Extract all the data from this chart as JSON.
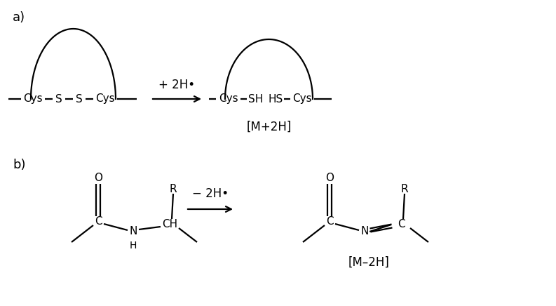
{
  "bg_color": "#ffffff",
  "line_color": "#000000",
  "text_color": "#000000",
  "label_a": "a)",
  "label_b": "b)",
  "arrow_a": "+ 2H•",
  "arrow_b": "− 2H•",
  "label_M2H_a": "[M+2H]",
  "label_M2H_b": "[M–2H]",
  "font_size_label": 13,
  "font_size_chem": 11,
  "font_size_arrow": 12,
  "font_size_bracket": 12,
  "lw": 1.6
}
